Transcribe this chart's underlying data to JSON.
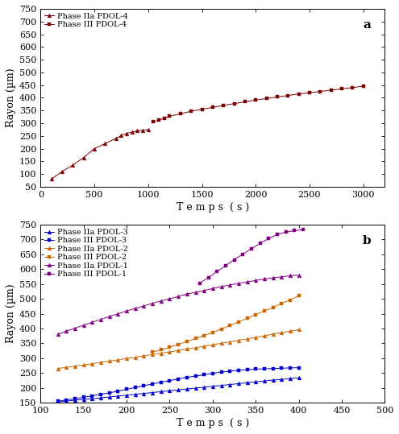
{
  "subplot_a": {
    "label": "a",
    "series": [
      {
        "name": "Phase IIa PDOL-4",
        "color": "#7B0000",
        "marker": "^",
        "linestyle": "-",
        "x": [
          100,
          200,
          300,
          400,
          500,
          600,
          700,
          750,
          800,
          850,
          900,
          950,
          1000
        ],
        "y": [
          80,
          110,
          135,
          165,
          200,
          220,
          240,
          252,
          260,
          265,
          270,
          272,
          275
        ]
      },
      {
        "name": "Phase III PDOL-4",
        "color": "#7B0000",
        "marker": "s",
        "linestyle": "-",
        "x": [
          1050,
          1100,
          1150,
          1200,
          1300,
          1400,
          1500,
          1600,
          1700,
          1800,
          1900,
          2000,
          2100,
          2200,
          2300,
          2400,
          2500,
          2600,
          2700,
          2800,
          2900,
          3000
        ],
        "y": [
          305,
          312,
          320,
          327,
          337,
          347,
          355,
          362,
          370,
          377,
          384,
          391,
          397,
          403,
          409,
          415,
          420,
          425,
          430,
          435,
          440,
          446
        ]
      }
    ],
    "xlabel": "T e m p s  ( s )",
    "ylabel": "Rayon (µm)",
    "xlim": [
      0,
      3200
    ],
    "ylim": [
      50,
      750
    ],
    "xticks": [
      0,
      500,
      1000,
      1500,
      2000,
      2500,
      3000
    ],
    "yticks": [
      50,
      100,
      150,
      200,
      250,
      300,
      350,
      400,
      450,
      500,
      550,
      600,
      650,
      700,
      750
    ]
  },
  "subplot_b": {
    "label": "b",
    "series": [
      {
        "name": "Phase IIa PDOL-3",
        "color": "#0000CC",
        "marker": "^",
        "linestyle": "-",
        "x": [
          120,
          130,
          140,
          150,
          160,
          170,
          180,
          190,
          200,
          210,
          220,
          230,
          240,
          250,
          260,
          270,
          280,
          290,
          300,
          310,
          320,
          330,
          340,
          350,
          360,
          370,
          380,
          390,
          400
        ],
        "y": [
          152,
          155,
          158,
          161,
          163,
          166,
          169,
          172,
          175,
          178,
          181,
          184,
          187,
          190,
          193,
          196,
          199,
          202,
          205,
          208,
          211,
          214,
          217,
          220,
          223,
          226,
          228,
          231,
          234
        ]
      },
      {
        "name": "Phase III PDOL-3",
        "color": "#0000CC",
        "marker": "s",
        "linestyle": "-",
        "x": [
          120,
          130,
          140,
          150,
          160,
          170,
          180,
          190,
          200,
          210,
          220,
          230,
          240,
          250,
          260,
          270,
          280,
          290,
          300,
          310,
          320,
          330,
          340,
          350,
          360,
          370,
          380,
          390,
          400
        ],
        "y": [
          155,
          159,
          163,
          168,
          173,
          178,
          183,
          189,
          195,
          201,
          207,
          213,
          219,
          224,
          230,
          235,
          240,
          244,
          249,
          253,
          256,
          259,
          261,
          263,
          264,
          265,
          266,
          267,
          268
        ]
      },
      {
        "name": "Phase IIa PDOL-2",
        "color": "#CC6600",
        "marker": "^",
        "linestyle": "-",
        "x": [
          120,
          130,
          140,
          150,
          160,
          170,
          180,
          190,
          200,
          210,
          220,
          230,
          240,
          250,
          260,
          270,
          280,
          290,
          300,
          310,
          320,
          330,
          340,
          350,
          360,
          370,
          380,
          390,
          400
        ],
        "y": [
          265,
          269,
          273,
          277,
          281,
          286,
          290,
          294,
          299,
          303,
          308,
          312,
          317,
          321,
          326,
          331,
          335,
          340,
          345,
          350,
          355,
          360,
          365,
          370,
          375,
          381,
          386,
          391,
          396
        ]
      },
      {
        "name": "Phase III PDOL-2",
        "color": "#CC6600",
        "marker": "s",
        "linestyle": "-",
        "x": [
          230,
          240,
          250,
          260,
          270,
          280,
          290,
          300,
          310,
          320,
          330,
          340,
          350,
          360,
          370,
          380,
          390,
          400
        ],
        "y": [
          320,
          328,
          337,
          346,
          356,
          366,
          376,
          387,
          398,
          410,
          422,
          434,
          447,
          459,
          471,
          484,
          496,
          510
        ]
      },
      {
        "name": "Phase IIa PDOL-1",
        "color": "#800080",
        "marker": "^",
        "linestyle": "-",
        "x": [
          120,
          130,
          140,
          150,
          160,
          170,
          180,
          190,
          200,
          210,
          220,
          230,
          240,
          250,
          260,
          270,
          280,
          290,
          300,
          310,
          320,
          330,
          340,
          350,
          360,
          370,
          380,
          390,
          400
        ],
        "y": [
          380,
          391,
          401,
          411,
          421,
          431,
          440,
          450,
          459,
          468,
          476,
          485,
          493,
          500,
          508,
          516,
          522,
          528,
          535,
          541,
          547,
          552,
          557,
          562,
          567,
          571,
          574,
          578,
          580
        ]
      },
      {
        "name": "Phase III PDOL-1",
        "color": "#800080",
        "marker": "s",
        "linestyle": "-",
        "x": [
          285,
          295,
          305,
          315,
          325,
          335,
          345,
          355,
          365,
          375,
          385,
          395,
          405
        ],
        "y": [
          553,
          572,
          592,
          612,
          632,
          651,
          669,
          687,
          703,
          717,
          725,
          730,
          733
        ]
      }
    ],
    "xlabel": "T e m p s  ( s )",
    "ylabel": "Rayon (µm)",
    "xlim": [
      100,
      500
    ],
    "ylim": [
      150,
      750
    ],
    "xticks": [
      100,
      150,
      200,
      250,
      300,
      350,
      400,
      450,
      500
    ],
    "yticks": [
      150,
      200,
      250,
      300,
      350,
      400,
      450,
      500,
      550,
      600,
      650,
      700,
      750
    ]
  },
  "background_color": "#ffffff",
  "tick_label_fontsize": 8,
  "axis_label_fontsize": 9,
  "legend_fontsize": 7,
  "subplot_label_fontsize": 11
}
